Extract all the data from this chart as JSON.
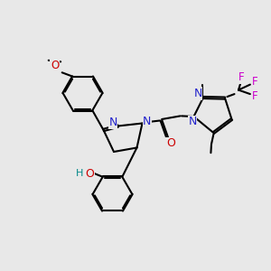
{
  "bg_color": "#e8e8e8",
  "bond_color": "#000000",
  "n_color": "#2222cc",
  "o_color": "#cc0000",
  "f_color": "#cc00cc",
  "h_color": "#008888",
  "lw": 1.5,
  "dbo": 0.035,
  "xlim": [
    0,
    10
  ],
  "ylim": [
    0,
    10
  ]
}
